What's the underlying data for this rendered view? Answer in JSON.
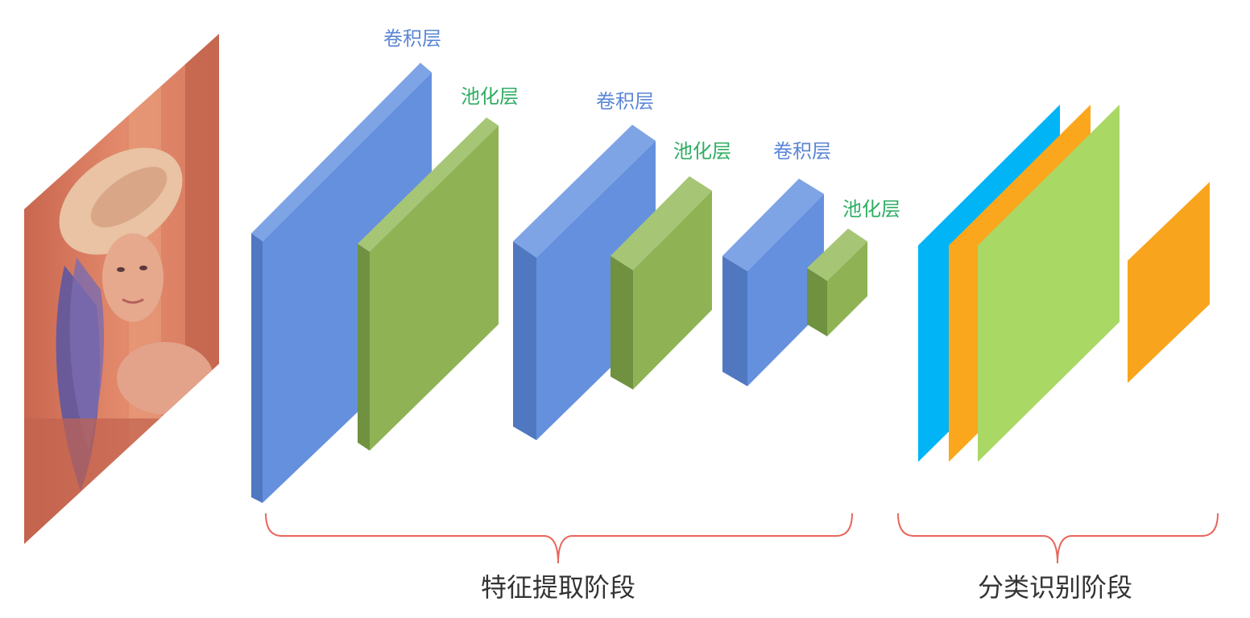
{
  "diagram": {
    "input_image": {
      "description_icon": "portrait-photo"
    },
    "layers": [
      {
        "id": "conv1",
        "label": "卷积层",
        "kind": "conv"
      },
      {
        "id": "pool1",
        "label": "池化层",
        "kind": "pool"
      },
      {
        "id": "conv2",
        "label": "卷积层",
        "kind": "conv"
      },
      {
        "id": "pool2",
        "label": "池化层",
        "kind": "pool"
      },
      {
        "id": "conv3",
        "label": "卷积层",
        "kind": "conv"
      },
      {
        "id": "pool3",
        "label": "池化层",
        "kind": "pool"
      }
    ],
    "stages": {
      "feature_extraction": "特征提取阶段",
      "classification": "分类识别阶段"
    },
    "colors": {
      "conv_label": "#5b86d6",
      "pool_label": "#2fae63",
      "conv_front": "#6590de",
      "conv_side": "#4f78c0",
      "conv_top": "#7ea4e6",
      "pool_front": "#8fb354",
      "pool_side": "#6f9140",
      "pool_top": "#a6c676",
      "fc_cyan": "#00b4f6",
      "fc_orange": "#fba71d",
      "fc_green": "#a9d865",
      "output_orange": "#f9a41d",
      "brace": "#e8655c"
    }
  }
}
